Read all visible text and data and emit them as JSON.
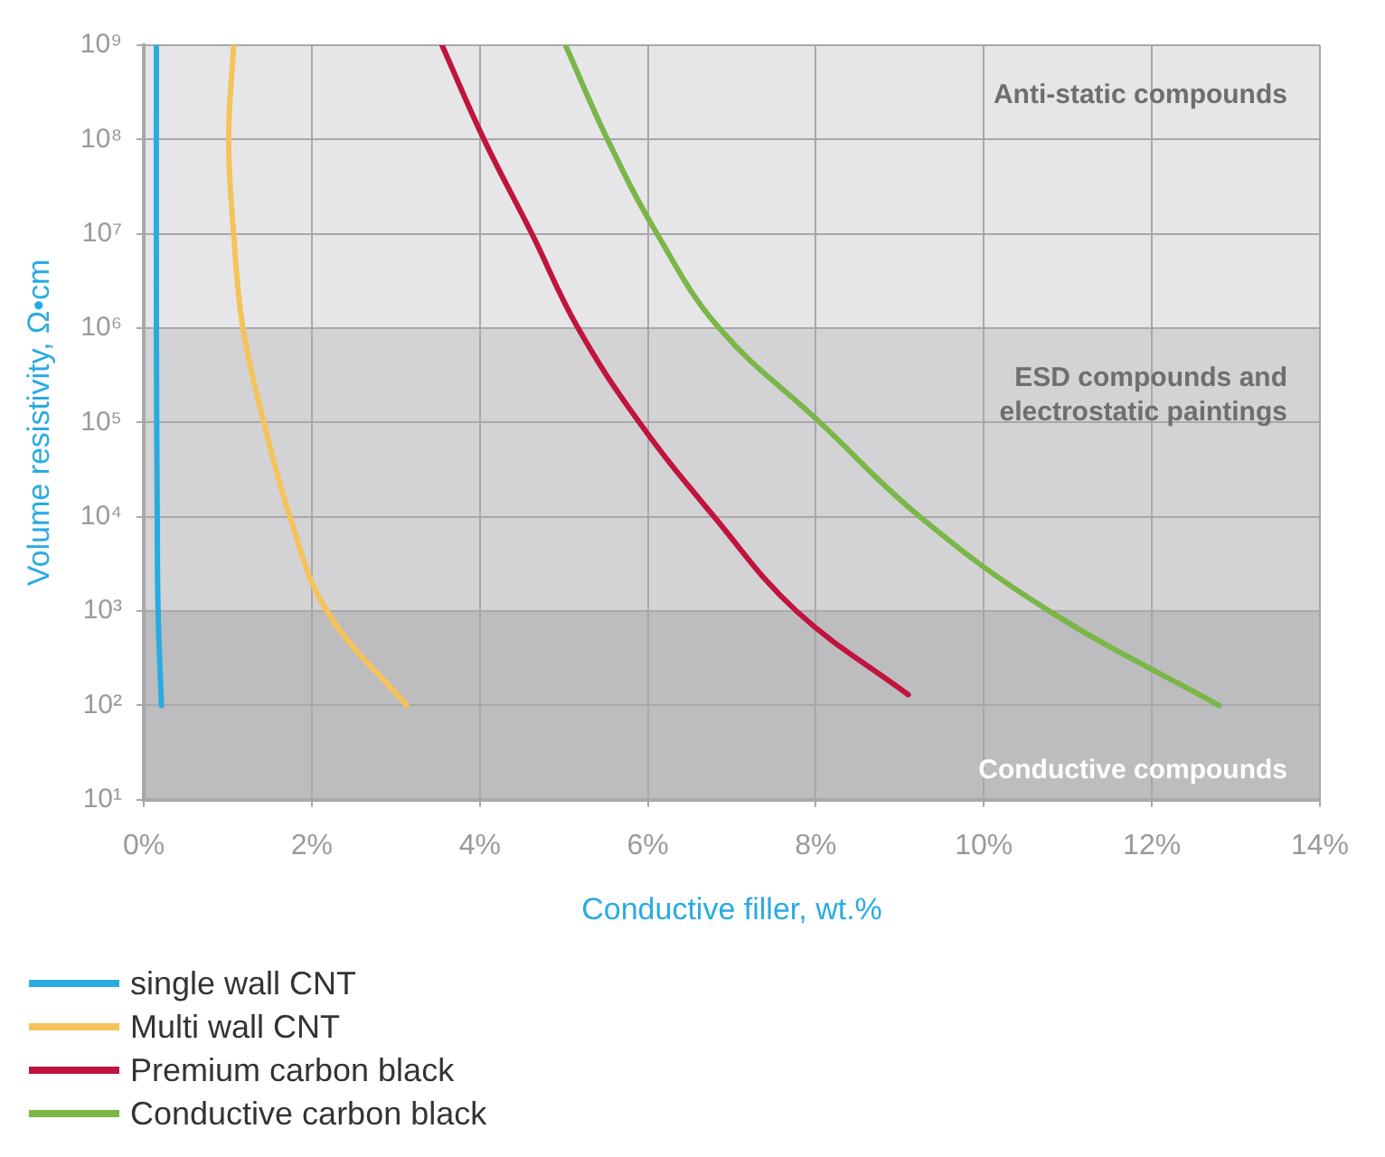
{
  "chart_data": {
    "type": "line",
    "xlabel": "Conductive filler, wt.%",
    "ylabel": "Volume resistivity, Ω•cm",
    "log": "y",
    "grid": true,
    "legend": "bottom",
    "marker": "none",
    "line_style": "solid",
    "xlim": [
      0,
      14
    ],
    "xticks": [
      {
        "value": 0,
        "label": "0%"
      },
      {
        "value": 2,
        "label": "2%"
      },
      {
        "value": 4,
        "label": "4%"
      },
      {
        "value": 6,
        "label": "6%"
      },
      {
        "value": 8,
        "label": "8%"
      },
      {
        "value": 10,
        "label": "10%"
      },
      {
        "value": 12,
        "label": "12%"
      },
      {
        "value": 14,
        "label": "14%"
      }
    ],
    "ylim": [
      10,
      1000000000
    ],
    "yticks": [
      {
        "value": 10,
        "label": "10¹"
      },
      {
        "value": 100,
        "label": "10²"
      },
      {
        "value": 1000,
        "label": "10³"
      },
      {
        "value": 10000,
        "label": "10⁴"
      },
      {
        "value": 100000,
        "label": "10⁵"
      },
      {
        "value": 1000000,
        "label": "10⁶"
      },
      {
        "value": 10000000,
        "label": "10⁷"
      },
      {
        "value": 100000000,
        "label": "10⁸"
      },
      {
        "value": 1000000000,
        "label": "10⁹"
      }
    ],
    "bands": [
      {
        "axis": "y",
        "from": 1000000,
        "to": 1000000000,
        "label": "Anti-static compounds",
        "color": "#e6e6e8"
      },
      {
        "axis": "y",
        "from": 1000,
        "to": 1000000,
        "label": "ESD compounds and\nelectrostatic paintings",
        "color": "#d3d3d5"
      },
      {
        "axis": "y",
        "from": 10,
        "to": 1000,
        "label": "Conductive compounds",
        "color": "#bdbdbf"
      }
    ],
    "series": [
      {
        "name": "single wall CNT",
        "color": "#29abe2",
        "x": [
          0.15,
          0.15,
          0.16,
          0.17,
          0.21
        ],
        "values": [
          1000000000,
          1000000,
          10000,
          1000,
          100
        ]
      },
      {
        "name": "Multi wall CNT",
        "color": "#f5c35a",
        "x": [
          1.07,
          1.01,
          1.07,
          1.18,
          1.43,
          1.74,
          2.18,
          3.13
        ],
        "values": [
          1000000000,
          100000000,
          10000000,
          1000000,
          100000,
          10000,
          1000,
          100
        ]
      },
      {
        "name": "Premium carbon black",
        "color": "#c0143c",
        "x": [
          3.55,
          4.05,
          4.62,
          5.17,
          5.9,
          6.79,
          7.77,
          9.1
        ],
        "values": [
          1000000000,
          100000000,
          10000000,
          1000000,
          100000,
          10000,
          1000,
          130
        ]
      },
      {
        "name": "Conductive carbon black",
        "color": "#7ab648",
        "x": [
          5.02,
          5.52,
          6.11,
          6.85,
          8.05,
          9.24,
          10.78,
          12.8
        ],
        "values": [
          1000000000,
          100000000,
          10000000,
          1000000,
          100000,
          10000,
          1000,
          100
        ]
      }
    ]
  }
}
